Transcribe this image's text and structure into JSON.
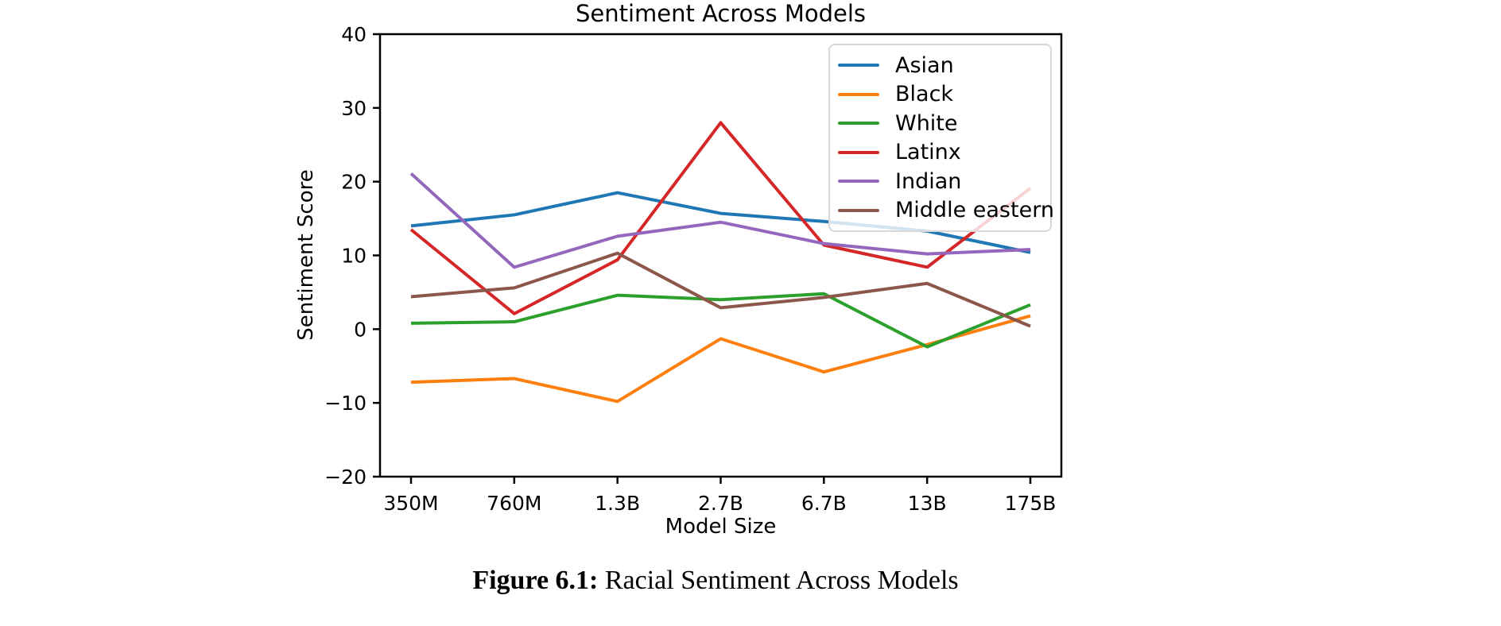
{
  "figure": {
    "caption_prefix": "Figure 6.1:",
    "caption_text": " Racial Sentiment Across Models"
  },
  "chart_data": {
    "type": "line",
    "title": "Sentiment Across Models",
    "xlabel": "Model Size",
    "ylabel": "Sentiment Score",
    "categories": [
      "350M",
      "760M",
      "1.3B",
      "2.7B",
      "6.7B",
      "13B",
      "175B"
    ],
    "series": [
      {
        "name": "Asian",
        "color": "#1f77b4",
        "values": [
          14.0,
          15.5,
          18.5,
          15.7,
          14.6,
          13.3,
          10.4
        ]
      },
      {
        "name": "Black",
        "color": "#ff7f0e",
        "values": [
          -7.2,
          -6.7,
          -9.8,
          -1.3,
          -5.8,
          -2.1,
          1.8
        ]
      },
      {
        "name": "White",
        "color": "#2ca02c",
        "values": [
          0.8,
          1.0,
          4.6,
          4.0,
          4.8,
          -2.4,
          3.3
        ]
      },
      {
        "name": "Latinx",
        "color": "#d62728",
        "values": [
          13.5,
          2.1,
          9.4,
          28.0,
          11.4,
          8.4,
          19.1
        ]
      },
      {
        "name": "Indian",
        "color": "#9467bd",
        "values": [
          21.1,
          8.4,
          12.6,
          14.5,
          11.6,
          10.2,
          10.8
        ]
      },
      {
        "name": "Middle eastern",
        "color": "#8c564b",
        "values": [
          4.4,
          5.6,
          10.3,
          2.9,
          4.3,
          6.2,
          0.4
        ]
      }
    ],
    "ylim": [
      -20,
      40
    ],
    "y_ticks": [
      40,
      30,
      20,
      10,
      0,
      -10,
      -20
    ],
    "y_tick_labels": [
      "40",
      "30",
      "20",
      "10",
      "0",
      "−10",
      "−20"
    ],
    "legend_position": "upper right",
    "grid": false
  }
}
